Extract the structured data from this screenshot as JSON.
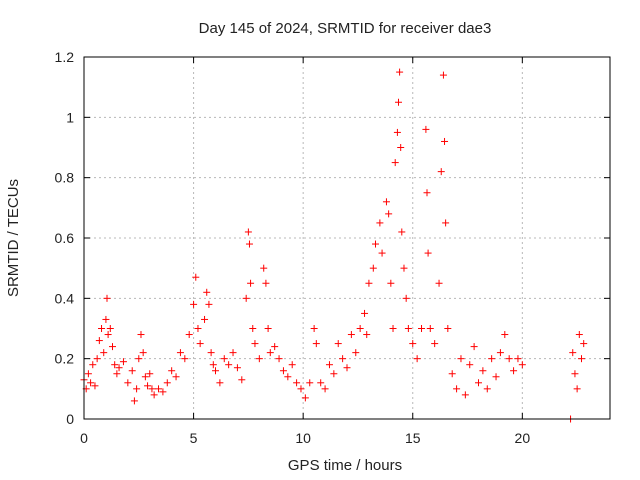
{
  "chart_data": {
    "type": "scatter",
    "title": "Day 145 of 2024, SRMTID for receiver dae3",
    "xlabel": "GPS time / hours",
    "ylabel": "SRMTID / TECUs",
    "xlim": [
      0,
      24
    ],
    "ylim": [
      0,
      1.2
    ],
    "xticks": [
      0,
      5,
      10,
      15,
      20
    ],
    "yticks": [
      0,
      0.2,
      0.4,
      0.6,
      0.8,
      1,
      1.2
    ],
    "ytick_labels": [
      "0",
      "0.2",
      "0.4",
      "0.6",
      "0.8",
      "1",
      "1.2"
    ],
    "grid": true,
    "marker": "+",
    "series": [
      {
        "name": "SRMTID",
        "color": "#ff0000",
        "points": [
          [
            0.0,
            0.13
          ],
          [
            0.1,
            0.1
          ],
          [
            0.2,
            0.15
          ],
          [
            0.3,
            0.12
          ],
          [
            0.4,
            0.18
          ],
          [
            0.5,
            0.11
          ],
          [
            0.6,
            0.2
          ],
          [
            0.7,
            0.26
          ],
          [
            0.8,
            0.3
          ],
          [
            0.9,
            0.22
          ],
          [
            1.0,
            0.33
          ],
          [
            1.05,
            0.4
          ],
          [
            1.1,
            0.28
          ],
          [
            1.2,
            0.3
          ],
          [
            1.3,
            0.24
          ],
          [
            1.4,
            0.18
          ],
          [
            1.5,
            0.15
          ],
          [
            1.6,
            0.17
          ],
          [
            1.8,
            0.19
          ],
          [
            2.0,
            0.12
          ],
          [
            2.2,
            0.16
          ],
          [
            2.3,
            0.06
          ],
          [
            2.4,
            0.1
          ],
          [
            2.5,
            0.2
          ],
          [
            2.6,
            0.28
          ],
          [
            2.7,
            0.22
          ],
          [
            2.8,
            0.14
          ],
          [
            2.9,
            0.11
          ],
          [
            3.0,
            0.15
          ],
          [
            3.1,
            0.1
          ],
          [
            3.2,
            0.08
          ],
          [
            3.4,
            0.1
          ],
          [
            3.6,
            0.09
          ],
          [
            3.8,
            0.12
          ],
          [
            4.0,
            0.16
          ],
          [
            4.2,
            0.14
          ],
          [
            4.4,
            0.22
          ],
          [
            4.6,
            0.2
          ],
          [
            4.8,
            0.28
          ],
          [
            5.0,
            0.38
          ],
          [
            5.1,
            0.47
          ],
          [
            5.2,
            0.3
          ],
          [
            5.3,
            0.25
          ],
          [
            5.5,
            0.33
          ],
          [
            5.6,
            0.42
          ],
          [
            5.7,
            0.38
          ],
          [
            5.8,
            0.22
          ],
          [
            5.9,
            0.18
          ],
          [
            6.0,
            0.16
          ],
          [
            6.2,
            0.12
          ],
          [
            6.4,
            0.2
          ],
          [
            6.6,
            0.18
          ],
          [
            6.8,
            0.22
          ],
          [
            7.0,
            0.17
          ],
          [
            7.2,
            0.13
          ],
          [
            7.4,
            0.4
          ],
          [
            7.5,
            0.62
          ],
          [
            7.55,
            0.58
          ],
          [
            7.6,
            0.45
          ],
          [
            7.7,
            0.3
          ],
          [
            7.8,
            0.25
          ],
          [
            8.0,
            0.2
          ],
          [
            8.2,
            0.5
          ],
          [
            8.3,
            0.45
          ],
          [
            8.4,
            0.3
          ],
          [
            8.5,
            0.22
          ],
          [
            8.7,
            0.24
          ],
          [
            8.9,
            0.2
          ],
          [
            9.1,
            0.16
          ],
          [
            9.3,
            0.14
          ],
          [
            9.5,
            0.18
          ],
          [
            9.7,
            0.12
          ],
          [
            9.9,
            0.1
          ],
          [
            10.1,
            0.07
          ],
          [
            10.3,
            0.12
          ],
          [
            10.5,
            0.3
          ],
          [
            10.6,
            0.25
          ],
          [
            10.8,
            0.12
          ],
          [
            11.0,
            0.1
          ],
          [
            11.2,
            0.18
          ],
          [
            11.4,
            0.15
          ],
          [
            11.6,
            0.25
          ],
          [
            11.8,
            0.2
          ],
          [
            12.0,
            0.17
          ],
          [
            12.2,
            0.28
          ],
          [
            12.4,
            0.22
          ],
          [
            12.6,
            0.3
          ],
          [
            12.8,
            0.35
          ],
          [
            12.9,
            0.28
          ],
          [
            13.0,
            0.45
          ],
          [
            13.2,
            0.5
          ],
          [
            13.3,
            0.58
          ],
          [
            13.5,
            0.65
          ],
          [
            13.6,
            0.55
          ],
          [
            13.8,
            0.72
          ],
          [
            13.9,
            0.68
          ],
          [
            14.0,
            0.45
          ],
          [
            14.1,
            0.3
          ],
          [
            14.2,
            0.85
          ],
          [
            14.3,
            0.95
          ],
          [
            14.35,
            1.05
          ],
          [
            14.4,
            1.15
          ],
          [
            14.45,
            0.9
          ],
          [
            14.5,
            0.62
          ],
          [
            14.6,
            0.5
          ],
          [
            14.7,
            0.4
          ],
          [
            14.8,
            0.3
          ],
          [
            15.0,
            0.25
          ],
          [
            15.2,
            0.2
          ],
          [
            15.4,
            0.3
          ],
          [
            15.6,
            0.96
          ],
          [
            15.65,
            0.75
          ],
          [
            15.7,
            0.55
          ],
          [
            15.8,
            0.3
          ],
          [
            16.0,
            0.25
          ],
          [
            16.2,
            0.45
          ],
          [
            16.3,
            0.82
          ],
          [
            16.4,
            1.14
          ],
          [
            16.45,
            0.92
          ],
          [
            16.5,
            0.65
          ],
          [
            16.6,
            0.3
          ],
          [
            16.8,
            0.15
          ],
          [
            17.0,
            0.1
          ],
          [
            17.2,
            0.2
          ],
          [
            17.4,
            0.08
          ],
          [
            17.6,
            0.18
          ],
          [
            17.8,
            0.24
          ],
          [
            18.0,
            0.12
          ],
          [
            18.2,
            0.16
          ],
          [
            18.4,
            0.1
          ],
          [
            18.6,
            0.2
          ],
          [
            18.8,
            0.14
          ],
          [
            19.0,
            0.22
          ],
          [
            19.2,
            0.28
          ],
          [
            19.4,
            0.2
          ],
          [
            19.6,
            0.16
          ],
          [
            19.8,
            0.2
          ],
          [
            20.0,
            0.18
          ],
          [
            22.2,
            0.0
          ],
          [
            22.3,
            0.22
          ],
          [
            22.4,
            0.15
          ],
          [
            22.5,
            0.1
          ],
          [
            22.6,
            0.28
          ],
          [
            22.7,
            0.2
          ],
          [
            22.8,
            0.25
          ]
        ]
      }
    ]
  }
}
